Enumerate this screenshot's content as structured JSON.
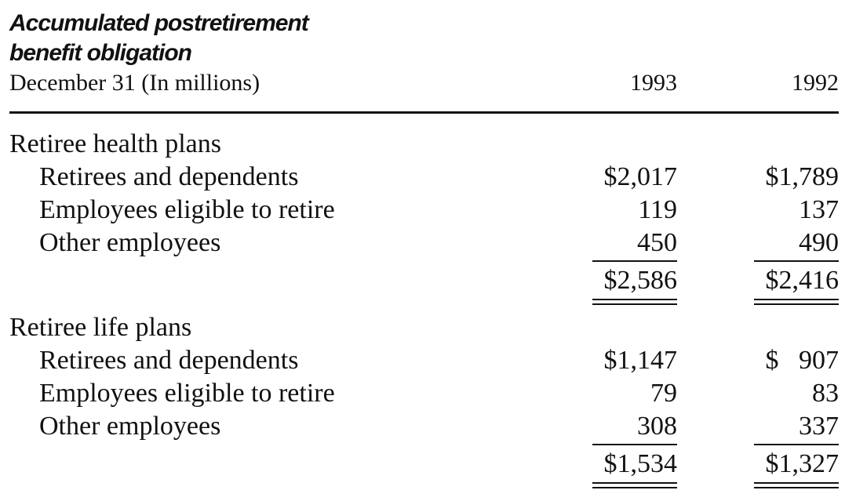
{
  "title": {
    "line1": "Accumulated postretirement",
    "line2": "benefit obligation"
  },
  "header": {
    "label": "December 31 (In millions)",
    "col1": "1993",
    "col2": "1992"
  },
  "health": {
    "heading": "Retiree health plans",
    "rows": [
      {
        "label": "Retirees and dependents",
        "v1993": "$2,017",
        "v1992": "$1,789"
      },
      {
        "label": "Employees eligible to retire",
        "v1993": "119",
        "v1992": "137"
      },
      {
        "label": "Other employees",
        "v1993": "450",
        "v1992": "490"
      }
    ],
    "total": {
      "v1993": "$2,586",
      "v1992": "$2,416"
    }
  },
  "life": {
    "heading": "Retiree life plans",
    "rows": [
      {
        "label": "Retirees and dependents",
        "v1993": "$1,147",
        "v1992": "$   907"
      },
      {
        "label": "Employees eligible to retire",
        "v1993": "79",
        "v1992": "83"
      },
      {
        "label": "Other employees",
        "v1993": "308",
        "v1992": "337"
      }
    ],
    "total": {
      "v1993": "$1,534",
      "v1992": "$1,327"
    }
  }
}
